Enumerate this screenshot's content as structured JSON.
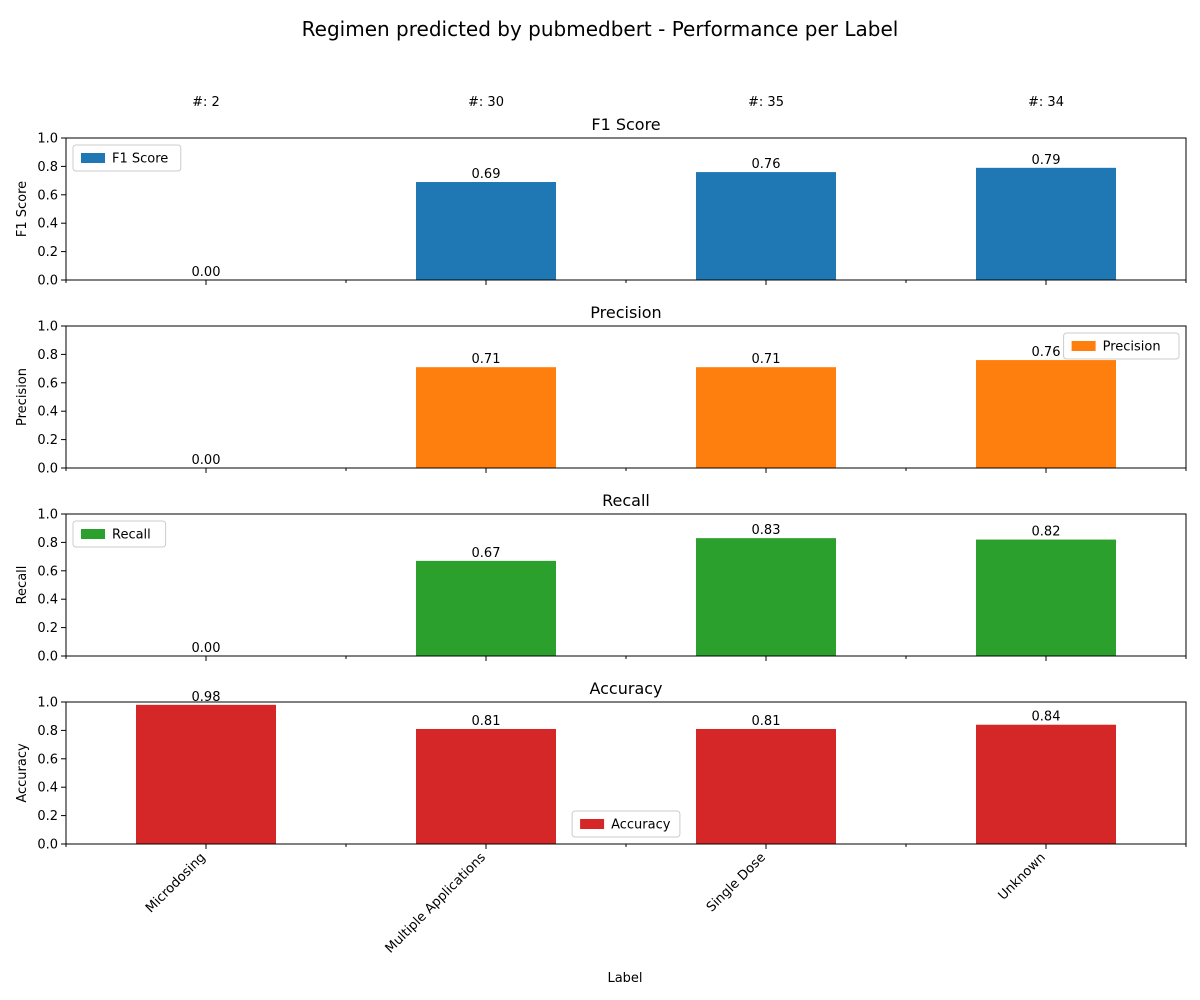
{
  "chart_data": {
    "type": "bar",
    "title": "Regimen predicted by pubmedbert - Performance per Label",
    "xlabel": "Label",
    "categories": [
      "Microdosing",
      "Multiple Applications",
      "Single Dose",
      "Unknown"
    ],
    "counts": [
      "#: 2",
      "#: 30",
      "#: 35",
      "#: 34"
    ],
    "ylim": [
      0,
      1.0
    ],
    "yticks": [
      "0.0",
      "0.2",
      "0.4",
      "0.6",
      "0.8",
      "1.0"
    ],
    "grid": false,
    "panels": [
      {
        "title": "F1 Score",
        "ylabel": "F1 Score",
        "legend": "F1 Score",
        "legend_position": "upper-left",
        "color": "#1f77b4",
        "values": [
          0.0,
          0.69,
          0.76,
          0.79
        ],
        "labels": [
          "0.00",
          "0.69",
          "0.76",
          "0.79"
        ]
      },
      {
        "title": "Precision",
        "ylabel": "Precision",
        "legend": "Precision",
        "legend_position": "upper-right",
        "color": "#ff7f0e",
        "values": [
          0.0,
          0.71,
          0.71,
          0.76
        ],
        "labels": [
          "0.00",
          "0.71",
          "0.71",
          "0.76"
        ]
      },
      {
        "title": "Recall",
        "ylabel": "Recall",
        "legend": "Recall",
        "legend_position": "upper-left",
        "color": "#2ca02c",
        "values": [
          0.0,
          0.67,
          0.83,
          0.82
        ],
        "labels": [
          "0.00",
          "0.67",
          "0.83",
          "0.82"
        ]
      },
      {
        "title": "Accuracy",
        "ylabel": "Accuracy",
        "legend": "Accuracy",
        "legend_position": "lower-center",
        "color": "#d62728",
        "values": [
          0.98,
          0.81,
          0.81,
          0.84
        ],
        "labels": [
          "0.98",
          "0.81",
          "0.81",
          "0.84"
        ]
      }
    ]
  }
}
